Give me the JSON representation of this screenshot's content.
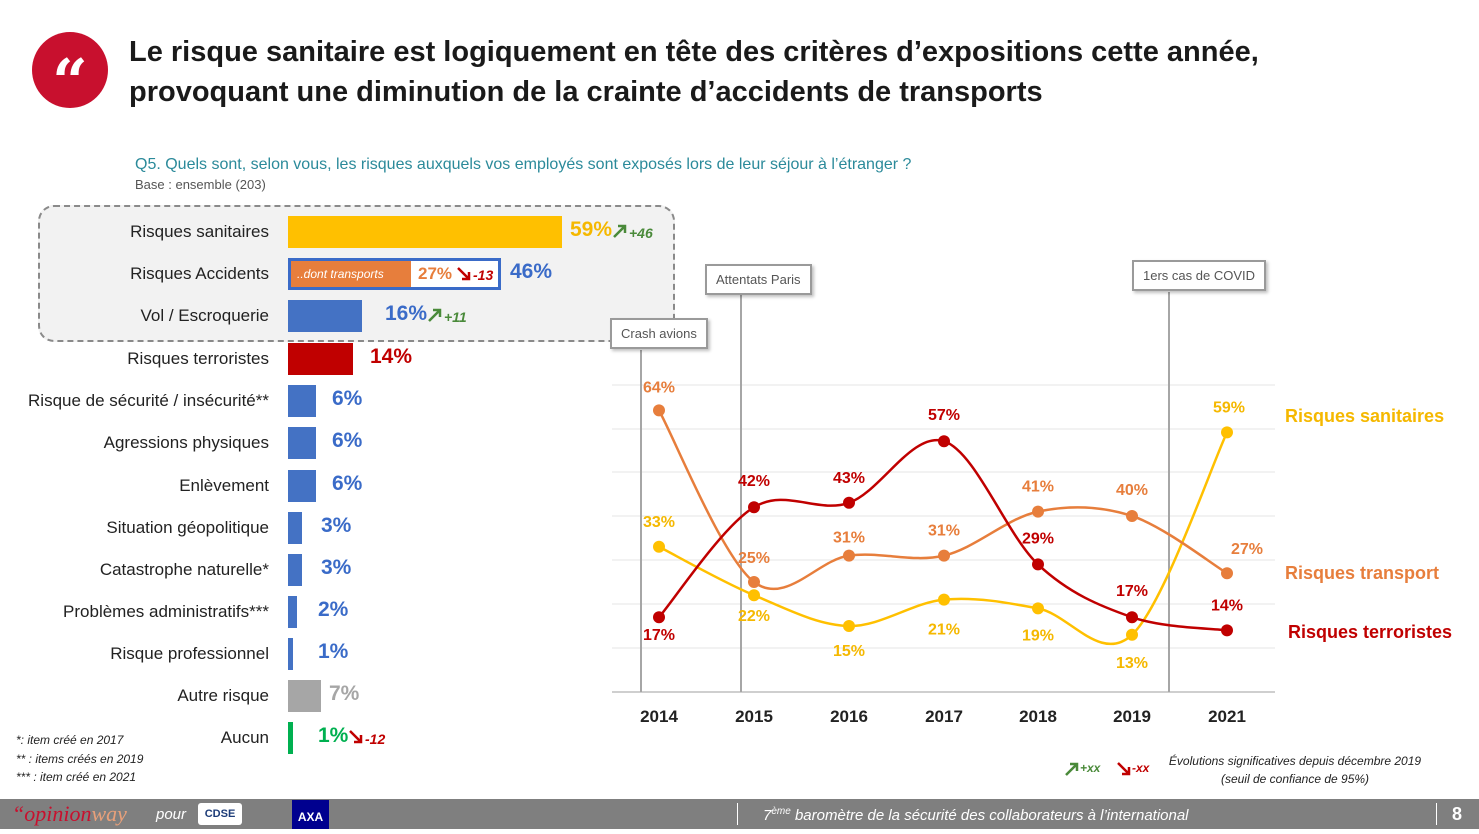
{
  "header": {
    "quote_glyph": "“",
    "title_line1": "Le risque sanitaire est logiquement en tête des critères d’expositions cette année,",
    "title_line2": "provoquant une diminution de la crainte d’accidents de transports"
  },
  "question": "Q5. Quels sont, selon vous, les risques auxquels vos employés sont exposés lors de leur séjour à l’étranger ?",
  "base": "Base : ensemble (203)",
  "chart_data": [
    {
      "type": "bar",
      "orientation": "horizontal",
      "categories": [
        "Risques sanitaires",
        "Risques Accidents",
        "Vol / Escroquerie",
        "Risques terroristes",
        "Risque de sécurité / insécurité**",
        "Agressions physiques",
        "Enlèvement",
        "Situation géopolitique",
        "Catastrophe naturelle*",
        "Problèmes administratifs***",
        "Risque professionnel",
        "Autre risque",
        "Aucun"
      ],
      "values": [
        59,
        46,
        16,
        14,
        6,
        6,
        6,
        3,
        3,
        2,
        1,
        7,
        1
      ],
      "value_labels": [
        "59%",
        "46%",
        "16%",
        "14%",
        "6%",
        "6%",
        "6%",
        "3%",
        "3%",
        "2%",
        "1%",
        "7%",
        "1%"
      ],
      "colors": [
        "#ffc000",
        "#4472c4",
        "#4472c4",
        "#c00000",
        "#4472c4",
        "#4472c4",
        "#4472c4",
        "#4472c4",
        "#4472c4",
        "#4472c4",
        "#4472c4",
        "#a6a6a6",
        "#00b050"
      ],
      "label_colors": [
        "#f5b800",
        "#3a6bc8",
        "#3a6bc8",
        "#c00000",
        "#3a6bc8",
        "#3a6bc8",
        "#3a6bc8",
        "#3a6bc8",
        "#3a6bc8",
        "#3a6bc8",
        "#3a6bc8",
        "#a6a6a6",
        "#00b050"
      ],
      "evolutions": [
        {
          "category": "Risques sanitaires",
          "text": "+46",
          "direction": "up"
        },
        {
          "category": "Vol / Escroquerie",
          "text": "+11",
          "direction": "up"
        },
        {
          "category": "Aucun",
          "text": "-12",
          "direction": "down"
        }
      ],
      "sub_item": {
        "label": "..dont transports",
        "value": 27,
        "value_label": "27%",
        "evolution": "-13",
        "direction": "down"
      },
      "unit": "%"
    },
    {
      "type": "line",
      "x": [
        "2014",
        "2015",
        "2016",
        "2017",
        "2018",
        "2019",
        "2021"
      ],
      "series": [
        {
          "name": "Risques sanitaires",
          "values": [
            33,
            22,
            15,
            21,
            19,
            13,
            59
          ],
          "labels": [
            "33%",
            "22%",
            "15%",
            "21%",
            "19%",
            "13%",
            "59%"
          ],
          "color": "#ffc000"
        },
        {
          "name": "Risques transport",
          "values": [
            64,
            25,
            31,
            31,
            41,
            40,
            27
          ],
          "labels": [
            "64%",
            "25%",
            "31%",
            "31%",
            "41%",
            "40%",
            "27%"
          ],
          "color": "#e77e3c"
        },
        {
          "name": "Risques terroristes",
          "values": [
            17,
            42,
            43,
            57,
            29,
            17,
            14
          ],
          "labels": [
            "17%",
            "42%",
            "43%",
            "57%",
            "29%",
            "17%",
            "14%"
          ],
          "color": "#c00000"
        }
      ],
      "annotations": [
        {
          "label": "Crash avions",
          "x": "2014"
        },
        {
          "label": "Attentats Paris",
          "x": "2015"
        },
        {
          "label": "1ers cas de COVID",
          "x": "2019-2021"
        }
      ],
      "ylim": [
        0,
        70
      ]
    }
  ],
  "footnotes": [
    "*: item créé en 2017",
    "** : items créés en 2019",
    "*** : item créé en 2021"
  ],
  "legend": {
    "up_text": "+xx",
    "down_text": "-xx",
    "note_line1": "Évolutions significatives depuis décembre 2019",
    "note_line2": "(seuil de confiance de 95%)"
  },
  "footer": {
    "logo_quote": "“",
    "logo_part1": "opinion",
    "logo_part2": "way",
    "pour": "pour",
    "cdse": "CDSE",
    "axa": "AXA",
    "sup": "ème",
    "ordinal": "7",
    "text": " baromètre de la sécurité des collaborateurs à l’international",
    "page": "8"
  },
  "colors": {
    "accent": "#c8102e",
    "up": "#4a8a3a",
    "down": "#c00000"
  }
}
